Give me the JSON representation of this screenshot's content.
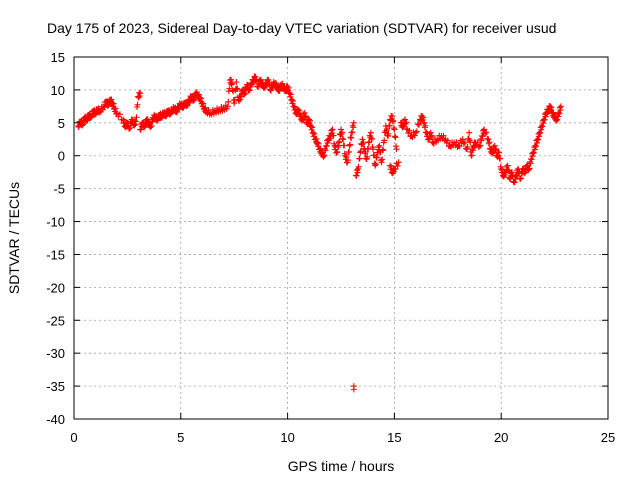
{
  "chart_data": {
    "type": "scatter",
    "title": "Day 175 of 2023, Sidereal Day-to-day VTEC variation (SDTVAR) for receiver usud",
    "xlabel": "GPS time / hours",
    "ylabel": "SDTVAR / TECUs",
    "xlim": [
      0,
      25
    ],
    "ylim": [
      -40,
      15
    ],
    "xticks": [
      0,
      5,
      10,
      15,
      20,
      25
    ],
    "yticks": [
      -40,
      -35,
      -30,
      -25,
      -20,
      -15,
      -10,
      -5,
      0,
      5,
      10,
      15
    ],
    "xtick_labels": [
      "0",
      "5",
      "10",
      "15",
      "20",
      "25"
    ],
    "ytick_labels": [
      "-40",
      "-35",
      "-30",
      "-25",
      "-20",
      "-15",
      "-10",
      "-5",
      "0",
      "5",
      "10",
      "15"
    ],
    "grid": true,
    "marker": "plus",
    "color": "#ff0000",
    "series": [
      {
        "name": "SDTVAR",
        "points": [
          [
            0.2,
            4.5
          ],
          [
            0.3,
            5.2
          ],
          [
            0.4,
            4.8
          ],
          [
            0.5,
            5.8
          ],
          [
            0.6,
            5.5
          ],
          [
            0.7,
            6.2
          ],
          [
            0.8,
            6.0
          ],
          [
            0.9,
            6.8
          ],
          [
            1.0,
            6.5
          ],
          [
            1.1,
            7.0
          ],
          [
            1.2,
            6.8
          ],
          [
            1.4,
            7.5
          ],
          [
            1.5,
            8.2
          ],
          [
            1.6,
            7.8
          ],
          [
            1.7,
            8.5
          ],
          [
            1.8,
            8.0
          ],
          [
            1.9,
            7.2
          ],
          [
            2.0,
            6.5
          ],
          [
            2.3,
            5.5
          ],
          [
            2.4,
            4.5
          ],
          [
            2.5,
            5.0
          ],
          [
            2.6,
            4.2
          ],
          [
            2.7,
            5.5
          ],
          [
            2.8,
            4.8
          ],
          [
            2.9,
            5.2
          ],
          [
            3.0,
            9.0
          ],
          [
            3.1,
            9.5
          ],
          [
            3.1,
            4.0
          ],
          [
            3.2,
            5.0
          ],
          [
            3.3,
            4.5
          ],
          [
            3.4,
            5.5
          ],
          [
            3.5,
            5.0
          ],
          [
            3.6,
            4.5
          ],
          [
            3.7,
            5.8
          ],
          [
            3.8,
            6.0
          ],
          [
            3.9,
            5.5
          ],
          [
            4.0,
            6.2
          ],
          [
            4.1,
            6.0
          ],
          [
            4.2,
            6.5
          ],
          [
            4.3,
            6.2
          ],
          [
            4.4,
            6.8
          ],
          [
            4.5,
            6.5
          ],
          [
            4.6,
            7.0
          ],
          [
            4.7,
            7.2
          ],
          [
            4.8,
            6.8
          ],
          [
            4.9,
            7.5
          ],
          [
            5.0,
            7.8
          ],
          [
            5.1,
            7.5
          ],
          [
            5.2,
            8.0
          ],
          [
            5.3,
            7.8
          ],
          [
            5.4,
            8.5
          ],
          [
            5.5,
            9.0
          ],
          [
            5.6,
            8.5
          ],
          [
            5.7,
            9.5
          ],
          [
            5.8,
            9.2
          ],
          [
            5.9,
            8.8
          ],
          [
            6.0,
            8.0
          ],
          [
            6.1,
            7.2
          ],
          [
            6.2,
            6.8
          ],
          [
            6.4,
            6.5
          ],
          [
            6.6,
            6.8
          ],
          [
            6.8,
            7.0
          ],
          [
            7.0,
            7.2
          ],
          [
            7.2,
            7.5
          ],
          [
            7.3,
            11.5
          ],
          [
            7.4,
            11.0
          ],
          [
            7.5,
            8.0
          ],
          [
            7.6,
            11.2
          ],
          [
            7.7,
            8.5
          ],
          [
            7.8,
            9.0
          ],
          [
            7.9,
            10.0
          ],
          [
            8.0,
            9.5
          ],
          [
            8.1,
            10.8
          ],
          [
            8.2,
            10.0
          ],
          [
            8.3,
            11.0
          ],
          [
            8.4,
            11.5
          ],
          [
            8.5,
            12.0
          ],
          [
            8.6,
            10.5
          ],
          [
            8.7,
            11.5
          ],
          [
            8.8,
            11.0
          ],
          [
            8.9,
            10.5
          ],
          [
            9.0,
            11.0
          ],
          [
            9.1,
            11.5
          ],
          [
            9.2,
            10.0
          ],
          [
            9.3,
            10.8
          ],
          [
            9.4,
            11.0
          ],
          [
            9.5,
            10.5
          ],
          [
            9.6,
            10.0
          ],
          [
            9.7,
            10.8
          ],
          [
            9.8,
            10.5
          ],
          [
            9.9,
            10.0
          ],
          [
            10.0,
            10.5
          ],
          [
            10.1,
            9.5
          ],
          [
            10.2,
            8.5
          ],
          [
            10.3,
            7.5
          ],
          [
            10.4,
            6.5
          ],
          [
            10.5,
            7.0
          ],
          [
            10.6,
            6.0
          ],
          [
            10.7,
            5.5
          ],
          [
            10.8,
            6.5
          ],
          [
            10.9,
            5.0
          ],
          [
            11.0,
            5.5
          ],
          [
            11.1,
            4.5
          ],
          [
            11.2,
            3.5
          ],
          [
            11.3,
            2.5
          ],
          [
            11.4,
            2.0
          ],
          [
            11.5,
            1.0
          ],
          [
            11.6,
            0.5
          ],
          [
            11.7,
            0.0
          ],
          [
            11.8,
            1.5
          ],
          [
            11.9,
            2.5
          ],
          [
            12.0,
            3.0
          ],
          [
            12.1,
            4.0
          ],
          [
            12.2,
            1.5
          ],
          [
            12.3,
            0.5
          ],
          [
            12.4,
            2.0
          ],
          [
            12.5,
            4.0
          ],
          [
            12.6,
            2.5
          ],
          [
            12.7,
            0.0
          ],
          [
            12.8,
            -1.0
          ],
          [
            12.9,
            1.5
          ],
          [
            13.0,
            3.5
          ],
          [
            13.1,
            5.0
          ],
          [
            13.2,
            -3.0
          ],
          [
            13.3,
            -2.0
          ],
          [
            13.4,
            0.5
          ],
          [
            13.5,
            2.5
          ],
          [
            13.6,
            1.0
          ],
          [
            13.7,
            -0.5
          ],
          [
            13.8,
            2.0
          ],
          [
            13.9,
            3.5
          ],
          [
            14.0,
            1.0
          ],
          [
            14.1,
            -1.5
          ],
          [
            14.2,
            0.5
          ],
          [
            14.3,
            1.5
          ],
          [
            14.4,
            -1.0
          ],
          [
            14.5,
            2.0
          ],
          [
            14.6,
            4.5
          ],
          [
            14.7,
            3.0
          ],
          [
            14.8,
            5.5
          ],
          [
            14.9,
            6.0
          ],
          [
            15.0,
            4.0
          ],
          [
            15.1,
            1.0
          ],
          [
            14.8,
            -1.5
          ],
          [
            14.9,
            -2.5
          ],
          [
            15.0,
            -2.0
          ],
          [
            15.2,
            -1.0
          ],
          [
            15.3,
            5.0
          ],
          [
            15.4,
            4.5
          ],
          [
            15.5,
            5.5
          ],
          [
            15.6,
            4.0
          ],
          [
            15.8,
            3.0
          ],
          [
            16.0,
            3.5
          ],
          [
            16.2,
            5.5
          ],
          [
            16.3,
            6.0
          ],
          [
            16.4,
            5.0
          ],
          [
            16.5,
            3.5
          ],
          [
            16.6,
            2.5
          ],
          [
            16.7,
            3.5
          ],
          [
            16.8,
            2.0
          ],
          [
            17.0,
            2.5
          ],
          [
            17.2,
            3.0
          ],
          [
            17.4,
            2.5
          ],
          [
            17.6,
            1.5
          ],
          [
            17.8,
            2.0
          ],
          [
            18.0,
            1.5
          ],
          [
            18.2,
            2.5
          ],
          [
            18.4,
            1.0
          ],
          [
            18.5,
            3.5
          ],
          [
            18.6,
            0.0
          ],
          [
            18.7,
            1.5
          ],
          [
            18.8,
            2.0
          ],
          [
            19.0,
            1.5
          ],
          [
            19.1,
            3.0
          ],
          [
            19.2,
            4.0
          ],
          [
            19.4,
            2.5
          ],
          [
            19.5,
            1.0
          ],
          [
            19.6,
            0.5
          ],
          [
            19.7,
            1.5
          ],
          [
            19.8,
            0.0
          ],
          [
            19.9,
            0.5
          ],
          [
            20.0,
            -2.0
          ],
          [
            20.1,
            -3.0
          ],
          [
            20.2,
            -2.5
          ],
          [
            20.3,
            -1.5
          ],
          [
            20.4,
            -3.5
          ],
          [
            20.5,
            -2.5
          ],
          [
            20.6,
            -4.0
          ],
          [
            20.7,
            -3.0
          ],
          [
            20.8,
            -2.0
          ],
          [
            20.9,
            -3.5
          ],
          [
            21.0,
            -2.0
          ],
          [
            21.1,
            -2.5
          ],
          [
            21.2,
            -1.5
          ],
          [
            21.3,
            -2.0
          ],
          [
            21.4,
            -0.5
          ],
          [
            21.5,
            0.5
          ],
          [
            21.6,
            1.5
          ],
          [
            21.7,
            2.5
          ],
          [
            21.8,
            3.5
          ],
          [
            21.9,
            4.5
          ],
          [
            22.0,
            5.5
          ],
          [
            22.1,
            6.5
          ],
          [
            22.2,
            7.0
          ],
          [
            22.3,
            7.5
          ],
          [
            22.4,
            6.5
          ],
          [
            22.5,
            6.0
          ],
          [
            22.6,
            5.5
          ],
          [
            22.7,
            6.5
          ],
          [
            22.8,
            7.5
          ],
          [
            13.1,
            -35.0
          ],
          [
            13.1,
            -35.5
          ]
        ]
      }
    ]
  }
}
